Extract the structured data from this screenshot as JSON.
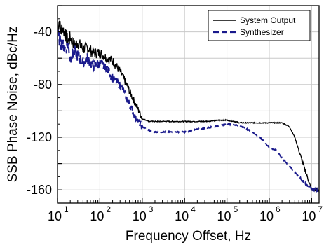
{
  "chart_data": {
    "type": "line",
    "xlabel": "Frequency Offset, Hz",
    "ylabel": "SSB Phase Noise, dBc/Hz",
    "x_scale": "log",
    "xlim": [
      10,
      15000000
    ],
    "ylim": [
      -170,
      -20
    ],
    "grid": true,
    "legend_position": "top-right",
    "x_ticks": [
      {
        "value": 10,
        "base": "10",
        "exp": "1"
      },
      {
        "value": 100,
        "base": "10",
        "exp": "2"
      },
      {
        "value": 1000,
        "base": "10",
        "exp": "3"
      },
      {
        "value": 10000,
        "base": "10",
        "exp": "4"
      },
      {
        "value": 100000,
        "base": "10",
        "exp": "5"
      },
      {
        "value": 1000000,
        "base": "10",
        "exp": "6"
      },
      {
        "value": 10000000,
        "base": "10",
        "exp": "7"
      }
    ],
    "y_ticks": [
      {
        "value": -40,
        "label": "-40"
      },
      {
        "value": -80,
        "label": "-80"
      },
      {
        "value": -120,
        "label": "-120"
      },
      {
        "value": -160,
        "label": "-160"
      }
    ],
    "series": [
      {
        "name": "System Output",
        "color": "#000000",
        "dash": "solid",
        "points": [
          [
            10,
            -38
          ],
          [
            11,
            -31
          ],
          [
            12,
            -40
          ],
          [
            13,
            -36
          ],
          [
            15,
            -42
          ],
          [
            18,
            -47
          ],
          [
            20,
            -44
          ],
          [
            25,
            -50
          ],
          [
            30,
            -48
          ],
          [
            40,
            -53
          ],
          [
            50,
            -52
          ],
          [
            70,
            -56
          ],
          [
            100,
            -56
          ],
          [
            150,
            -60
          ],
          [
            200,
            -62
          ],
          [
            300,
            -70
          ],
          [
            400,
            -78
          ],
          [
            500,
            -85
          ],
          [
            700,
            -95
          ],
          [
            900,
            -102
          ],
          [
            1000,
            -106
          ],
          [
            1500,
            -108
          ],
          [
            3000,
            -108
          ],
          [
            10000,
            -108
          ],
          [
            30000,
            -108
          ],
          [
            70000,
            -107
          ],
          [
            100000,
            -107
          ],
          [
            150000,
            -108
          ],
          [
            200000,
            -109
          ],
          [
            300000,
            -109
          ],
          [
            1000000,
            -109
          ],
          [
            2000000,
            -109
          ],
          [
            3000000,
            -112
          ],
          [
            4000000,
            -120
          ],
          [
            5000000,
            -130
          ],
          [
            7000000,
            -145
          ],
          [
            10000000,
            -160
          ],
          [
            15000000,
            -160
          ]
        ]
      },
      {
        "name": "Synthesizer",
        "color": "#1a1a8c",
        "dash": "dashed",
        "points": [
          [
            10,
            -42
          ],
          [
            12,
            -48
          ],
          [
            15,
            -53
          ],
          [
            18,
            -50
          ],
          [
            20,
            -60
          ],
          [
            25,
            -55
          ],
          [
            30,
            -58
          ],
          [
            40,
            -64
          ],
          [
            50,
            -60
          ],
          [
            70,
            -66
          ],
          [
            100,
            -64
          ],
          [
            150,
            -68
          ],
          [
            200,
            -75
          ],
          [
            300,
            -80
          ],
          [
            400,
            -88
          ],
          [
            500,
            -95
          ],
          [
            700,
            -105
          ],
          [
            1000,
            -112
          ],
          [
            1500,
            -115
          ],
          [
            2000,
            -116
          ],
          [
            5000,
            -116
          ],
          [
            10000,
            -116
          ],
          [
            20000,
            -114
          ],
          [
            50000,
            -112
          ],
          [
            100000,
            -110
          ],
          [
            200000,
            -111
          ],
          [
            400000,
            -116
          ],
          [
            700000,
            -122
          ],
          [
            1000000,
            -128
          ],
          [
            1500000,
            -130
          ],
          [
            2000000,
            -136
          ],
          [
            3000000,
            -142
          ],
          [
            5000000,
            -150
          ],
          [
            7000000,
            -155
          ],
          [
            10000000,
            -159
          ],
          [
            15000000,
            -161
          ]
        ]
      }
    ]
  }
}
